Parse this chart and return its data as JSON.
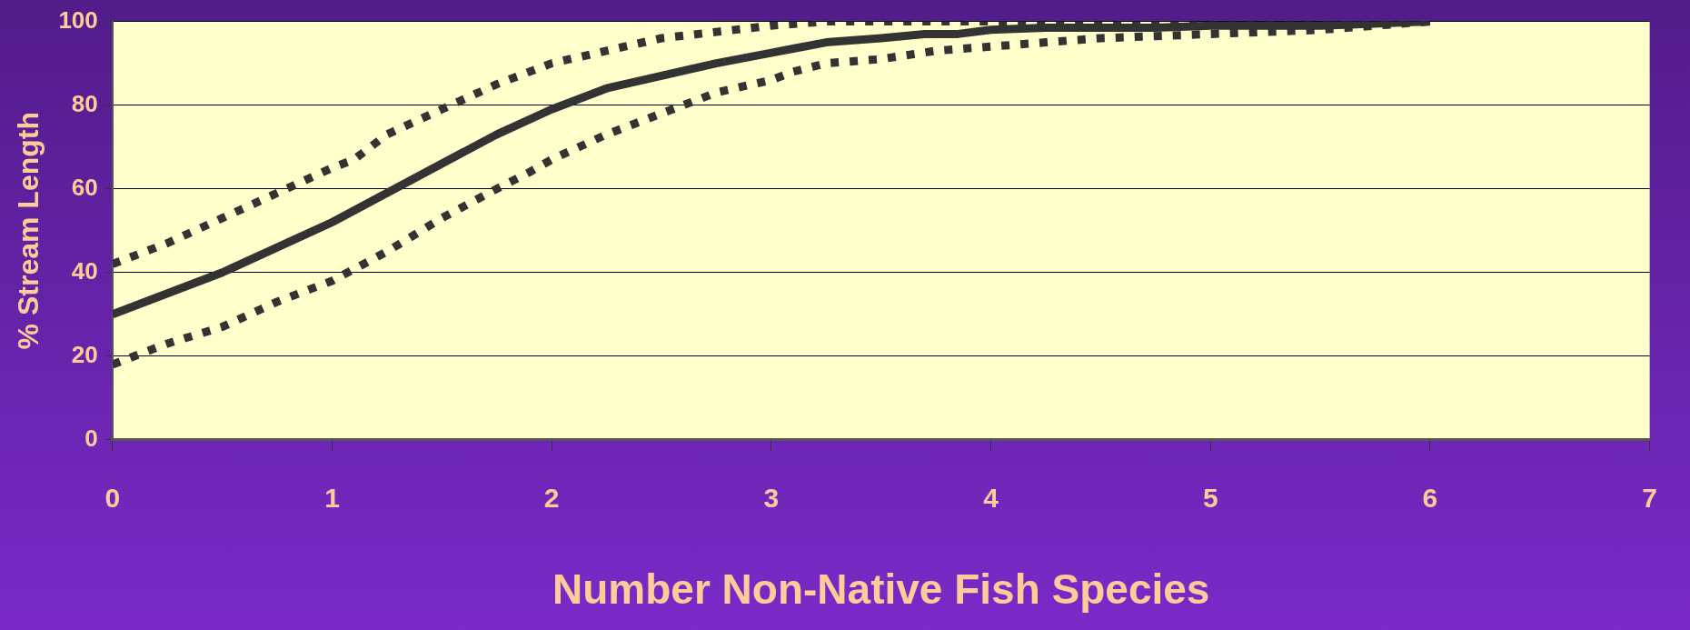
{
  "chart_data": {
    "type": "line",
    "xlabel": "Number Non-Native Fish Species",
    "ylabel": "% Stream Length",
    "xlim": [
      0,
      7
    ],
    "xticks": [
      0,
      1,
      2,
      3,
      4,
      5,
      6,
      7
    ],
    "ylim": [
      0,
      100
    ],
    "yticks": [
      0,
      20,
      40,
      60,
      80,
      100
    ],
    "grid": "y",
    "series": [
      {
        "color": "#333333",
        "line_style": "dotted",
        "x": [
          0,
          0.25,
          0.5,
          0.75,
          1,
          1.1,
          1.25,
          1.5,
          1.75,
          2,
          2.25,
          2.5,
          2.75,
          3,
          3.25,
          3.5,
          4,
          5,
          6
        ],
        "values": [
          42,
          47,
          53,
          59,
          65,
          67,
          73,
          79,
          85,
          90,
          93,
          96,
          97.5,
          99,
          100,
          100,
          100,
          100,
          100
        ]
      },
      {
        "color": "#333333",
        "line_style": "solid",
        "x": [
          0,
          0.25,
          0.5,
          0.75,
          1,
          1.25,
          1.5,
          1.75,
          2,
          2.25,
          2.5,
          2.75,
          3,
          3.1,
          3.25,
          3.5,
          3.7,
          3.85,
          4,
          4.25,
          4.5,
          4.75,
          5,
          5.5,
          6
        ],
        "values": [
          30,
          35,
          40,
          46,
          52,
          59,
          66,
          73,
          79,
          84,
          87,
          90,
          92.5,
          93.5,
          95,
          96,
          97,
          97,
          98,
          98.5,
          98.5,
          98.5,
          99,
          99,
          100
        ]
      },
      {
        "color": "#333333",
        "line_style": "dotted",
        "x": [
          0,
          0.25,
          0.5,
          0.75,
          1,
          1.25,
          1.5,
          1.75,
          1.9,
          2,
          2.25,
          2.5,
          2.75,
          3,
          3.1,
          3.25,
          3.5,
          3.75,
          4,
          4.25,
          4.5,
          4.75,
          5,
          5.25,
          5.5,
          5.75,
          6
        ],
        "values": [
          18,
          23,
          27,
          33,
          38,
          45,
          53,
          60,
          64,
          67,
          73,
          78,
          83,
          86,
          88,
          90,
          91,
          93,
          94,
          95,
          96,
          96.5,
          97,
          97.5,
          98,
          99,
          100
        ]
      }
    ]
  }
}
